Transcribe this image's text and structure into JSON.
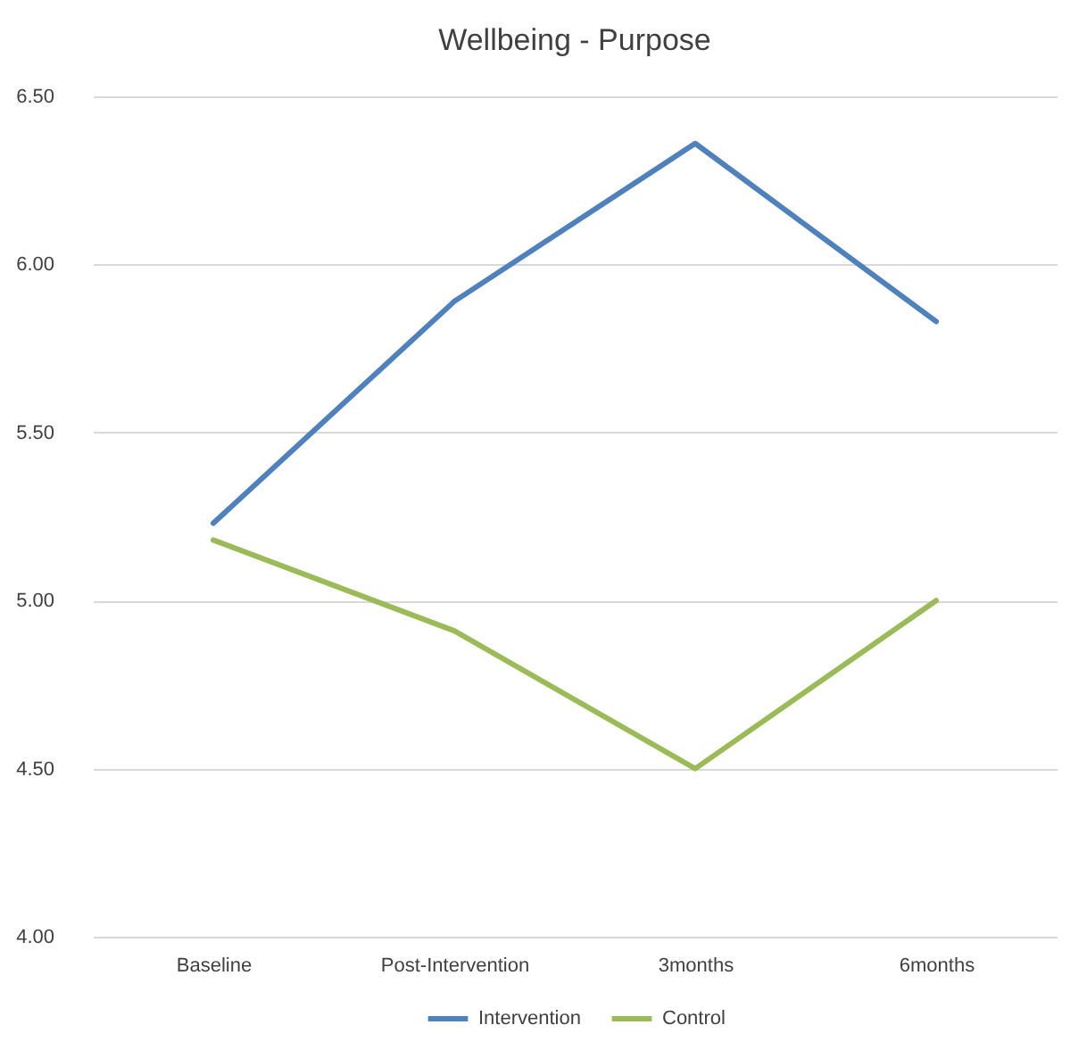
{
  "chart_data": {
    "type": "line",
    "title": "Wellbeing - Purpose",
    "categories": [
      "Baseline",
      "Post-Intervention",
      "3months",
      "6months"
    ],
    "series": [
      {
        "name": "Intervention",
        "color": "#4f81bd",
        "values": [
          5.23,
          5.89,
          6.36,
          5.83
        ]
      },
      {
        "name": "Control",
        "color": "#9bbb59",
        "values": [
          5.18,
          4.91,
          4.5,
          5.0
        ]
      }
    ],
    "ylim": [
      4.0,
      6.5
    ],
    "yticks": [
      {
        "value": 4.0,
        "label": "4.00"
      },
      {
        "value": 4.5,
        "label": "4.50"
      },
      {
        "value": 5.0,
        "label": "5.00"
      },
      {
        "value": 5.5,
        "label": "5.50"
      },
      {
        "value": 6.0,
        "label": "6.00"
      },
      {
        "value": 6.5,
        "label": "6.50"
      }
    ],
    "grid": "y",
    "legend": "bottom",
    "marker": "none",
    "line_style": "solid"
  }
}
